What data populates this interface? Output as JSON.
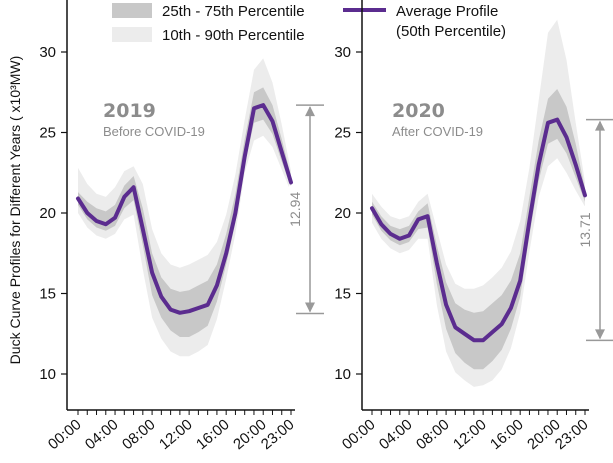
{
  "legend": {
    "band_iqr": "25th - 75th Percentile",
    "band_outer": "10th - 90th Percentile",
    "line_label_1": "Average Profile",
    "line_label_2": "(50th Percentile)"
  },
  "y_axis_label": "Duck Curve Profiles for Different Years ( x10³MW)",
  "colors": {
    "band_outer": "#ececec",
    "band_iqr": "#c8c8c8",
    "line": "#5b2c8f",
    "axis": "#111111",
    "annotation": "#999999"
  },
  "chart_data": [
    {
      "type": "line",
      "title": "2019",
      "subtitle": "Before COVID-19",
      "ylim": [
        8,
        32
      ],
      "y_ticks": [
        10,
        15,
        20,
        25,
        30
      ],
      "x": [
        0,
        1,
        2,
        3,
        4,
        5,
        6,
        7,
        8,
        9,
        10,
        11,
        12,
        13,
        14,
        15,
        16,
        17,
        18,
        19,
        20,
        21,
        22,
        23
      ],
      "x_tick_labels": [
        "00:00",
        "04:00",
        "08:00",
        "12:00",
        "16:00",
        "20:00",
        "23:00"
      ],
      "x_tick_hours": [
        0,
        4,
        8,
        12,
        16,
        20,
        23
      ],
      "series": [
        {
          "name": "Average Profile (50th Percentile)",
          "values": [
            20.9,
            20.0,
            19.5,
            19.3,
            19.7,
            21.0,
            21.6,
            19.0,
            16.3,
            14.8,
            14.0,
            13.8,
            13.9,
            14.1,
            14.3,
            15.5,
            17.5,
            20.0,
            23.5,
            26.5,
            26.7,
            25.7,
            23.8,
            21.9
          ]
        }
      ],
      "band_25_75": {
        "lower": [
          20.5,
          19.6,
          19.1,
          18.9,
          19.2,
          20.3,
          20.8,
          18.0,
          14.9,
          13.5,
          12.7,
          12.3,
          12.3,
          12.6,
          13.0,
          14.5,
          16.8,
          19.4,
          23.0,
          25.6,
          25.8,
          24.9,
          23.2,
          21.6
        ],
        "upper": [
          21.3,
          20.7,
          20.3,
          20.1,
          20.5,
          21.7,
          22.3,
          20.3,
          17.5,
          16.0,
          15.3,
          15.1,
          15.2,
          15.5,
          15.8,
          16.8,
          18.7,
          21.2,
          24.6,
          27.5,
          27.8,
          26.7,
          24.6,
          22.3
        ]
      },
      "band_10_90": {
        "lower": [
          20.0,
          19.1,
          18.6,
          18.4,
          18.7,
          19.6,
          19.9,
          16.5,
          13.5,
          12.2,
          11.4,
          11.1,
          11.1,
          11.4,
          11.8,
          13.4,
          15.9,
          18.7,
          22.5,
          24.5,
          24.8,
          24.1,
          22.7,
          21.3
        ],
        "upper": [
          22.8,
          21.8,
          21.2,
          21.0,
          21.6,
          22.6,
          22.9,
          21.8,
          19.0,
          17.5,
          16.8,
          16.6,
          16.8,
          17.1,
          17.4,
          18.2,
          19.9,
          22.4,
          25.8,
          28.9,
          29.6,
          28.1,
          25.5,
          22.6
        ]
      },
      "span": {
        "label": "12.94",
        "top": 26.7,
        "bottom": 13.76
      }
    },
    {
      "type": "line",
      "title": "2020",
      "subtitle": "After COVID-19",
      "ylim": [
        8,
        32
      ],
      "y_ticks": [
        10,
        15,
        20,
        25,
        30
      ],
      "x": [
        0,
        1,
        2,
        3,
        4,
        5,
        6,
        7,
        8,
        9,
        10,
        11,
        12,
        13,
        14,
        15,
        16,
        17,
        18,
        19,
        20,
        21,
        22,
        23
      ],
      "x_tick_labels": [
        "00:00",
        "04:00",
        "08:00",
        "12:00",
        "16:00",
        "20:00",
        "23:00"
      ],
      "x_tick_hours": [
        0,
        4,
        8,
        12,
        16,
        20,
        23
      ],
      "series": [
        {
          "name": "Average Profile (50th Percentile)",
          "values": [
            20.3,
            19.3,
            18.7,
            18.4,
            18.6,
            19.6,
            19.8,
            16.9,
            14.3,
            12.9,
            12.5,
            12.1,
            12.1,
            12.6,
            13.1,
            14.1,
            15.8,
            19.5,
            23.0,
            25.6,
            25.8,
            24.7,
            23.0,
            21.1
          ]
        }
      ],
      "band_25_75": {
        "lower": [
          19.9,
          18.9,
          18.3,
          18.0,
          18.2,
          19.0,
          19.1,
          15.6,
          12.8,
          11.3,
          10.7,
          10.3,
          10.3,
          10.8,
          11.5,
          12.8,
          14.8,
          18.6,
          22.0,
          24.3,
          24.6,
          23.7,
          22.2,
          20.7
        ],
        "upper": [
          20.7,
          19.8,
          19.2,
          19.0,
          19.2,
          20.1,
          20.6,
          18.0,
          15.7,
          14.4,
          14.0,
          13.8,
          13.9,
          14.4,
          14.9,
          15.8,
          17.5,
          21.0,
          24.5,
          27.1,
          27.7,
          26.6,
          24.3,
          21.5
        ]
      },
      "band_10_90": {
        "lower": [
          19.4,
          18.4,
          17.8,
          17.5,
          17.7,
          18.4,
          18.4,
          14.3,
          11.4,
          10.1,
          9.6,
          9.2,
          9.3,
          9.6,
          10.3,
          11.6,
          13.8,
          17.6,
          21.0,
          22.9,
          23.4,
          22.5,
          21.4,
          20.4
        ],
        "upper": [
          21.2,
          20.4,
          19.8,
          19.6,
          19.8,
          20.7,
          21.2,
          19.0,
          16.8,
          15.6,
          15.3,
          15.3,
          15.5,
          16.0,
          16.6,
          17.6,
          19.5,
          22.8,
          27.0,
          31.2,
          32.0,
          29.5,
          25.6,
          21.9
        ]
      },
      "span": {
        "label": "13.71",
        "top": 25.8,
        "bottom": 12.09
      }
    }
  ]
}
